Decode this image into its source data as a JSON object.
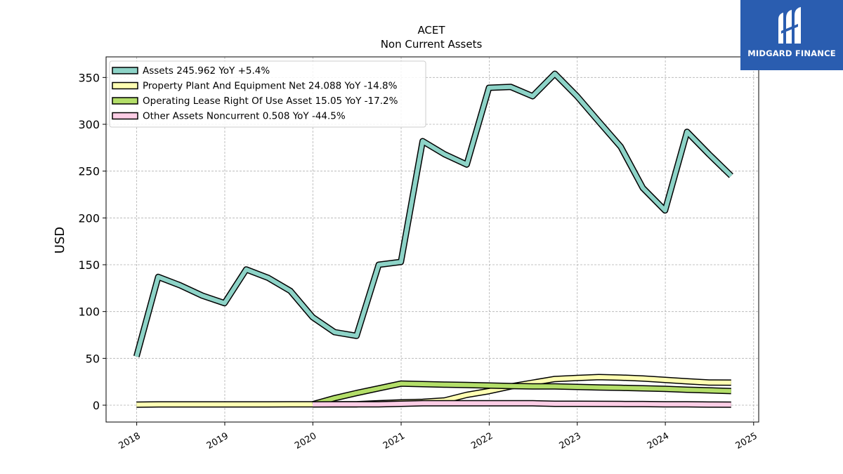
{
  "chart_data": {
    "type": "line",
    "title": "ACET",
    "subtitle": "Non Current  Assets",
    "ylabel": "USD",
    "xlabel": "",
    "ylim": [
      -18,
      372
    ],
    "xlim": [
      "2017-08-27",
      "2025-01-22"
    ],
    "yticks": [
      0,
      50,
      100,
      150,
      200,
      250,
      300,
      350
    ],
    "xticks": [
      "2018",
      "2019",
      "2020",
      "2021",
      "2022",
      "2023",
      "2024",
      "2025"
    ],
    "grid": true,
    "legend_position": "top-left",
    "series": [
      {
        "name": "Assets",
        "legend_label": "Assets  245.962 YoY +5.4%",
        "color": "#8dd3c7",
        "points": [
          [
            "2017-12-31",
            52
          ],
          [
            "2018-03-31",
            137
          ],
          [
            "2018-06-30",
            128
          ],
          [
            "2018-09-30",
            117
          ],
          [
            "2018-12-31",
            109
          ],
          [
            "2019-03-31",
            145
          ],
          [
            "2019-06-30",
            136
          ],
          [
            "2019-09-30",
            122
          ],
          [
            "2019-12-31",
            94
          ],
          [
            "2020-03-31",
            78
          ],
          [
            "2020-06-30",
            74
          ],
          [
            "2020-09-30",
            150
          ],
          [
            "2020-12-31",
            153
          ],
          [
            "2021-03-31",
            282
          ],
          [
            "2021-06-30",
            268
          ],
          [
            "2021-09-30",
            257
          ],
          [
            "2021-12-31",
            339
          ],
          [
            "2022-03-31",
            340
          ],
          [
            "2022-06-30",
            330
          ],
          [
            "2022-09-30",
            354
          ],
          [
            "2022-12-31",
            330
          ],
          [
            "2023-03-31",
            303
          ],
          [
            "2023-06-30",
            276
          ],
          [
            "2023-09-30",
            232
          ],
          [
            "2023-12-31",
            208
          ],
          [
            "2024-03-31",
            292
          ],
          [
            "2024-06-30",
            268
          ],
          [
            "2024-09-30",
            245
          ]
        ]
      },
      {
        "name": "Property Plant And Equipment Net",
        "legend_label": "Property Plant And Equipment Net  24.088 YoY -14.8%",
        "color": "#ffffb3",
        "points": [
          [
            "2017-12-31",
            0.5
          ],
          [
            "2018-03-31",
            0.8
          ],
          [
            "2018-06-30",
            0.8
          ],
          [
            "2018-09-30",
            0.8
          ],
          [
            "2018-12-31",
            0.8
          ],
          [
            "2019-03-31",
            0.8
          ],
          [
            "2019-06-30",
            0.8
          ],
          [
            "2019-09-30",
            0.9
          ],
          [
            "2019-12-31",
            0.9
          ],
          [
            "2020-03-31",
            0.9
          ],
          [
            "2020-06-30",
            1
          ],
          [
            "2020-09-30",
            2
          ],
          [
            "2020-12-31",
            3
          ],
          [
            "2021-03-31",
            3.5
          ],
          [
            "2021-06-30",
            5
          ],
          [
            "2021-09-30",
            11
          ],
          [
            "2021-12-31",
            15
          ],
          [
            "2022-03-31",
            20
          ],
          [
            "2022-06-30",
            24
          ],
          [
            "2022-09-30",
            28
          ],
          [
            "2022-12-31",
            29
          ],
          [
            "2023-03-31",
            30
          ],
          [
            "2023-06-30",
            29.5
          ],
          [
            "2023-09-30",
            28.5
          ],
          [
            "2023-12-31",
            27
          ],
          [
            "2024-03-31",
            25.5
          ],
          [
            "2024-06-30",
            24.2
          ],
          [
            "2024-09-30",
            24.1
          ]
        ]
      },
      {
        "name": "Operating Lease Right Of Use Asset",
        "legend_label": "Operating Lease Right Of Use Asset  15.05 YoY -17.2%",
        "color": "#b3de69",
        "points": [
          [
            "2019-12-31",
            1
          ],
          [
            "2020-03-31",
            7.5
          ],
          [
            "2020-06-30",
            13
          ],
          [
            "2020-09-30",
            18
          ],
          [
            "2020-12-31",
            23
          ],
          [
            "2021-03-31",
            22.5
          ],
          [
            "2021-06-30",
            22
          ],
          [
            "2021-09-30",
            21.5
          ],
          [
            "2021-12-31",
            21
          ],
          [
            "2022-03-31",
            20.5
          ],
          [
            "2022-06-30",
            20
          ],
          [
            "2022-09-30",
            20
          ],
          [
            "2022-12-31",
            19.5
          ],
          [
            "2023-03-31",
            19
          ],
          [
            "2023-06-30",
            18.5
          ],
          [
            "2023-09-30",
            18
          ],
          [
            "2023-12-31",
            17.5
          ],
          [
            "2024-03-31",
            16.5
          ],
          [
            "2024-06-30",
            15.8
          ],
          [
            "2024-09-30",
            15.05
          ]
        ]
      },
      {
        "name": "Other Assets Noncurrent",
        "legend_label": "Other Assets Noncurrent  0.508 YoY -44.5%",
        "color": "#fccde5",
        "points": [
          [
            "2019-12-31",
            0.8
          ],
          [
            "2020-03-31",
            0.9
          ],
          [
            "2020-06-30",
            0.9
          ],
          [
            "2020-09-30",
            1
          ],
          [
            "2020-12-31",
            1.5
          ],
          [
            "2021-03-31",
            2
          ],
          [
            "2021-06-30",
            2
          ],
          [
            "2021-09-30",
            2
          ],
          [
            "2021-12-31",
            2
          ],
          [
            "2022-03-31",
            2
          ],
          [
            "2022-06-30",
            2
          ],
          [
            "2022-09-30",
            1.5
          ],
          [
            "2022-12-31",
            1.5
          ],
          [
            "2023-03-31",
            1.4
          ],
          [
            "2023-06-30",
            1.3
          ],
          [
            "2023-09-30",
            1.2
          ],
          [
            "2023-12-31",
            1
          ],
          [
            "2024-03-31",
            0.9
          ],
          [
            "2024-06-30",
            0.7
          ],
          [
            "2024-09-30",
            0.5
          ]
        ]
      }
    ]
  },
  "logo": {
    "text": "MIDGARD FINANCE",
    "color": "#2a5db0"
  }
}
